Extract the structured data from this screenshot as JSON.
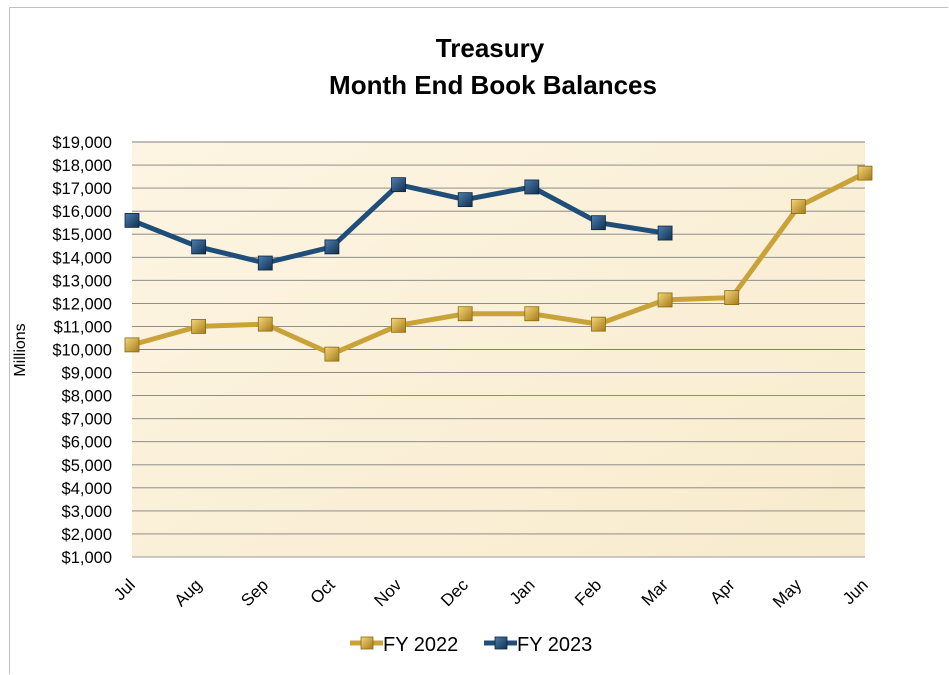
{
  "chart_data": {
    "type": "line",
    "title": [
      "Treasury",
      "Month End Book Balances"
    ],
    "xlabel": "",
    "ylabel": "Millions",
    "categories": [
      "Jul",
      "Aug",
      "Sep",
      "Oct",
      "Nov",
      "Dec",
      "Jan",
      "Feb",
      "Mar",
      "Apr",
      "May",
      "Jun"
    ],
    "ylim": [
      1000,
      19000
    ],
    "ytick_step": 1000,
    "ytick_labels": [
      "$1,000",
      "$2,000",
      "$3,000",
      "$4,000",
      "$5,000",
      "$6,000",
      "$7,000",
      "$8,000",
      "$9,000",
      "$10,000",
      "$11,000",
      "$12,000",
      "$13,000",
      "$14,000",
      "$15,000",
      "$16,000",
      "$17,000",
      "$18,000",
      "$19,000"
    ],
    "grid": true,
    "legend_position": "bottom",
    "series": [
      {
        "name": "FY 2022",
        "color": "#c9a23a",
        "values": [
          10200,
          11000,
          11100,
          9800,
          11050,
          11550,
          11550,
          11100,
          12150,
          12250,
          16200,
          17650
        ]
      },
      {
        "name": "FY 2023",
        "color": "#1f4e79",
        "values": [
          15600,
          14450,
          13750,
          14450,
          17150,
          16500,
          17050,
          15500,
          15050,
          null,
          null,
          null
        ]
      }
    ]
  }
}
